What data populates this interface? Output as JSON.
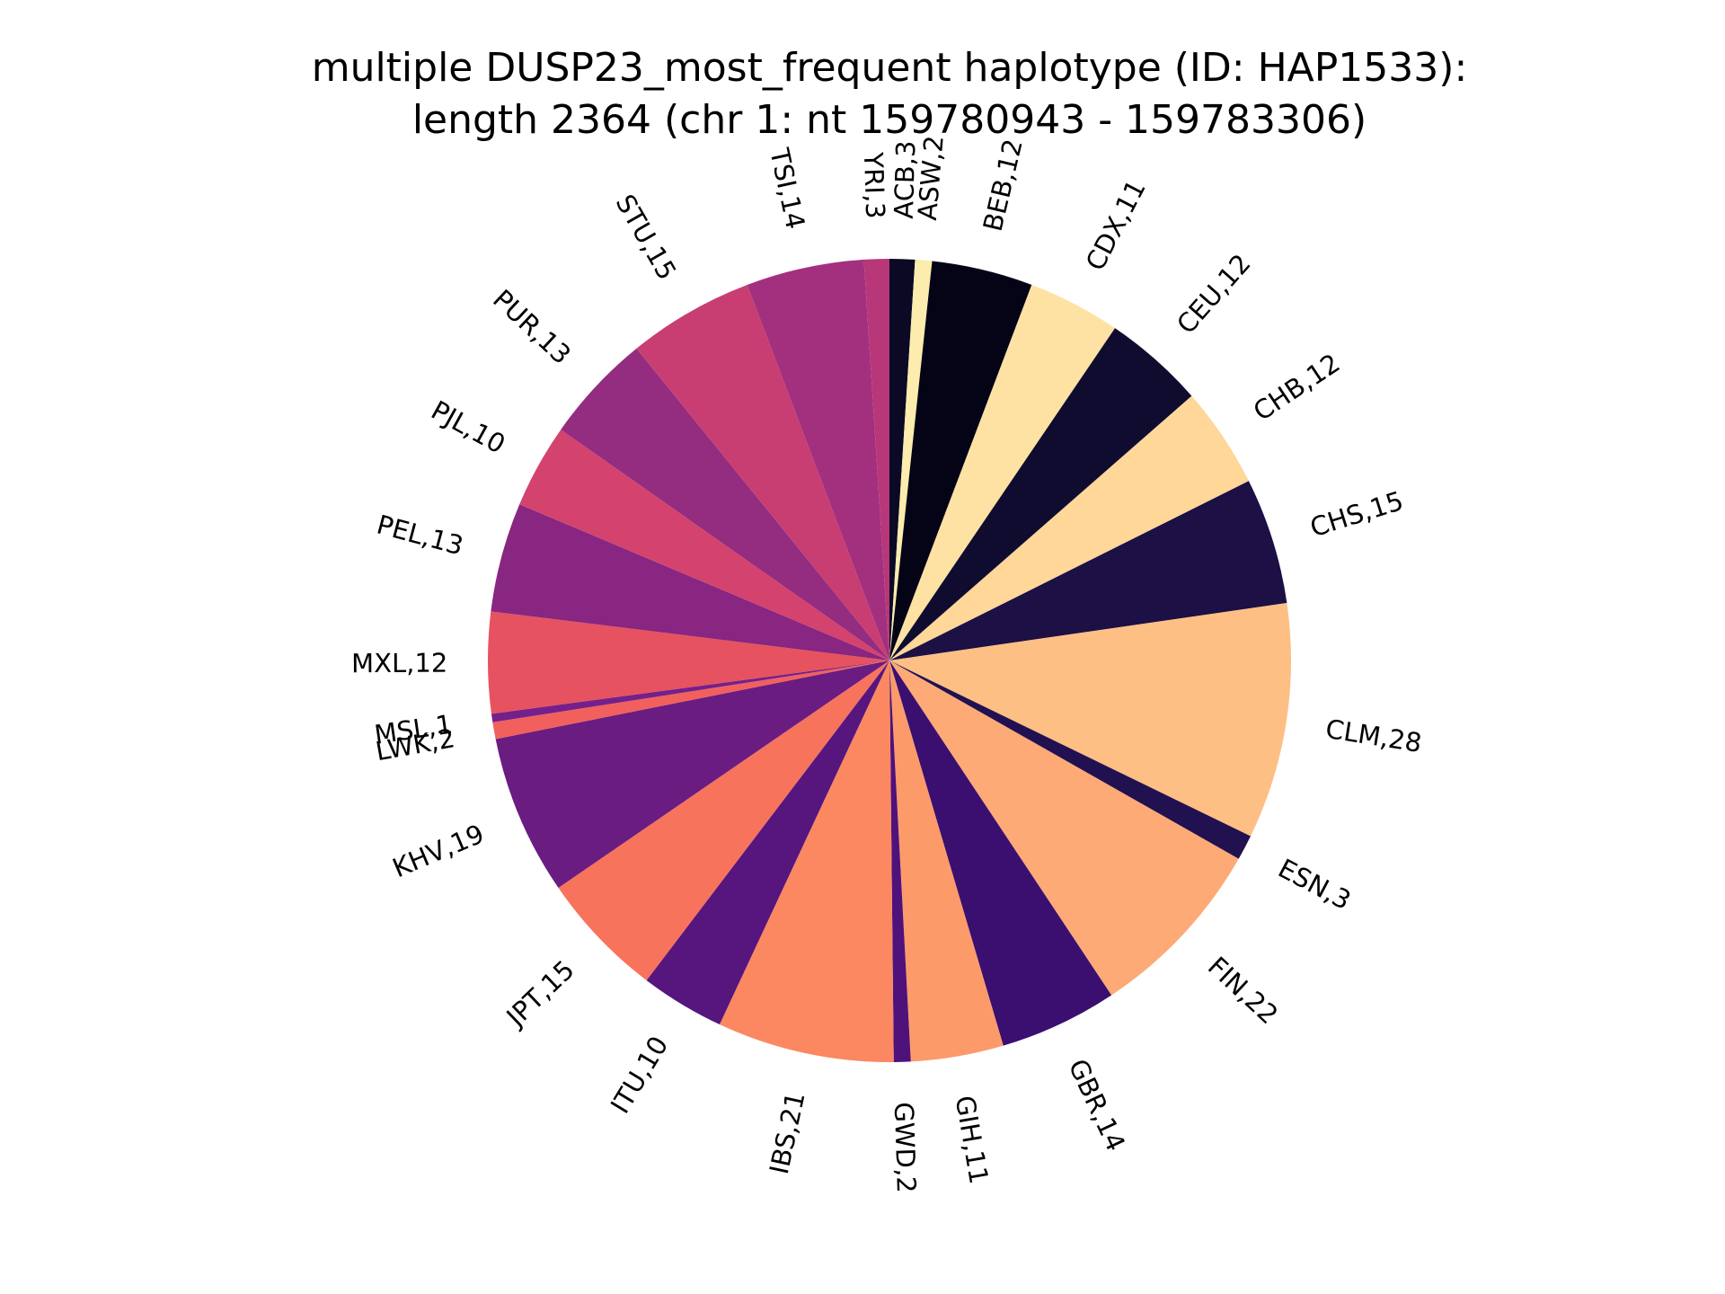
{
  "chart_data": {
    "type": "pie",
    "title": [
      "multiple DUSP23_most_frequent haplotype (ID: HAP1533):",
      "length 2364 (chr 1: nt 159780943 - 159783306)"
    ],
    "start_angle_deg": 90,
    "direction": "clockwise",
    "slices": [
      {
        "label": "ACB,3",
        "name": "ACB",
        "value": 3,
        "color": "#0b0924"
      },
      {
        "label": "ASW,2",
        "name": "ASW",
        "value": 2,
        "color": "#fcecad"
      },
      {
        "label": "BEB,12",
        "name": "BEB",
        "value": 12,
        "color": "#050417"
      },
      {
        "label": "CDX,11",
        "name": "CDX",
        "value": 11,
        "color": "#fde2a3"
      },
      {
        "label": "CEU,12",
        "name": "CEU",
        "value": 12,
        "color": "#100c2f"
      },
      {
        "label": "CHB,12",
        "name": "CHB",
        "value": 12,
        "color": "#fed799"
      },
      {
        "label": "CHS,15",
        "name": "CHS",
        "value": 15,
        "color": "#1c1044"
      },
      {
        "label": "CLM,28",
        "name": "CLM",
        "value": 28,
        "color": "#febf84"
      },
      {
        "label": "ESN,3",
        "name": "ESN",
        "value": 3,
        "color": "#221150"
      },
      {
        "label": "FIN,22",
        "name": "FIN",
        "value": 22,
        "color": "#fdaa76"
      },
      {
        "label": "GBR,14",
        "name": "GBR",
        "value": 14,
        "color": "#3b0f70"
      },
      {
        "label": "GIH,11",
        "name": "GIH",
        "value": 11,
        "color": "#fd9a6a"
      },
      {
        "label": "GWD,2",
        "name": "GWD",
        "value": 2,
        "color": "#4f127b"
      },
      {
        "label": "IBS,21",
        "name": "IBS",
        "value": 21,
        "color": "#fb8861"
      },
      {
        "label": "ITU,10",
        "name": "ITU",
        "value": 10,
        "color": "#57157e"
      },
      {
        "label": "JPT,15",
        "name": "JPT",
        "value": 15,
        "color": "#f7735c"
      },
      {
        "label": "KHV,19",
        "name": "KHV",
        "value": 19,
        "color": "#6a1c81"
      },
      {
        "label": "LWK,2",
        "name": "LWK",
        "value": 2,
        "color": "#f1605d"
      },
      {
        "label": "MSL,1",
        "name": "MSL",
        "value": 1,
        "color": "#75208a"
      },
      {
        "label": "MXL,12",
        "name": "MXL",
        "value": 12,
        "color": "#e6525f"
      },
      {
        "label": "PEL,13",
        "name": "PEL",
        "value": 13,
        "color": "#882681"
      },
      {
        "label": "PJL,10",
        "name": "PJL",
        "value": 10,
        "color": "#d3436e"
      },
      {
        "label": "PUR,13",
        "name": "PUR",
        "value": 13,
        "color": "#942c80"
      },
      {
        "label": "STU,15",
        "name": "STU",
        "value": 15,
        "color": "#c83e73"
      },
      {
        "label": "TSI,14",
        "name": "TSI",
        "value": 14,
        "color": "#a3307e"
      },
      {
        "label": "YRI,3",
        "name": "YRI",
        "value": 3,
        "color": "#b73779"
      }
    ]
  }
}
